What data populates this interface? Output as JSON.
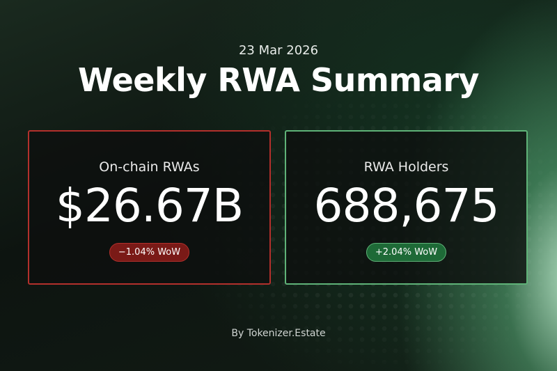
{
  "header": {
    "date": "23 Mar 2026",
    "title": "Weekly RWA Summary"
  },
  "cards": [
    {
      "label": "On-chain RWAs",
      "value": "$26.67B",
      "change": "−1.04% WoW",
      "trend": "down"
    },
    {
      "label": "RWA Holders",
      "value": "688,675",
      "change": "+2.04% WoW",
      "trend": "up"
    }
  ],
  "footer": {
    "credit": "By Tokenizer.Estate"
  }
}
